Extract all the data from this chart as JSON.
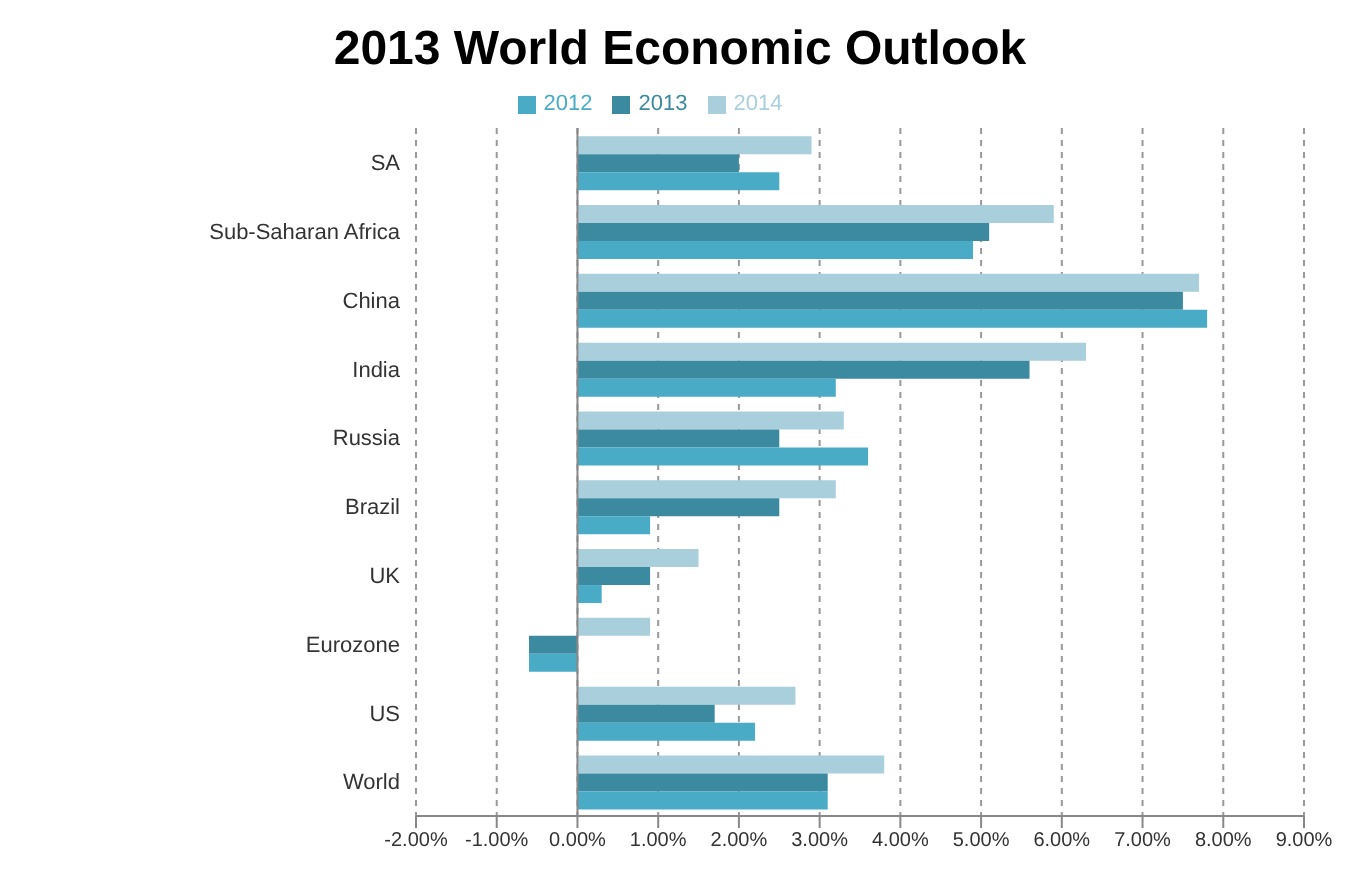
{
  "chart_data": {
    "type": "bar",
    "orientation": "horizontal",
    "title": "2013 World Economic Outlook",
    "categories": [
      "SA",
      "Sub-Saharan Africa",
      "China",
      "India",
      "Russia",
      "Brazil",
      "UK",
      "Eurozone",
      "US",
      "World"
    ],
    "series": [
      {
        "name": "2014",
        "color": "#a9cfdd",
        "values": [
          2.9,
          5.9,
          7.7,
          6.3,
          3.3,
          3.2,
          1.5,
          0.9,
          2.7,
          3.8
        ]
      },
      {
        "name": "2013",
        "color": "#3b8aa0",
        "values": [
          2.0,
          5.1,
          7.5,
          5.6,
          2.5,
          2.5,
          0.9,
          -0.6,
          1.7,
          3.1
        ]
      },
      {
        "name": "2012",
        "color": "#4aabc6",
        "values": [
          2.5,
          4.9,
          7.8,
          3.2,
          3.6,
          0.9,
          0.3,
          -0.6,
          2.2,
          3.1
        ]
      }
    ],
    "xlim": [
      -2,
      9
    ],
    "xticks": [
      {
        "value": -2,
        "label": "-2.00%"
      },
      {
        "value": -1,
        "label": "-1.00%"
      },
      {
        "value": 0,
        "label": "0.00%"
      },
      {
        "value": 1,
        "label": "1.00%"
      },
      {
        "value": 2,
        "label": "2.00%"
      },
      {
        "value": 3,
        "label": "3.00%"
      },
      {
        "value": 4,
        "label": "4.00%"
      },
      {
        "value": 5,
        "label": "5.00%"
      },
      {
        "value": 6,
        "label": "6.00%"
      },
      {
        "value": 7,
        "label": "7.00%"
      },
      {
        "value": 8,
        "label": "8.00%"
      },
      {
        "value": 9,
        "label": "9.00%"
      }
    ],
    "grid": "x",
    "legend": "top"
  }
}
